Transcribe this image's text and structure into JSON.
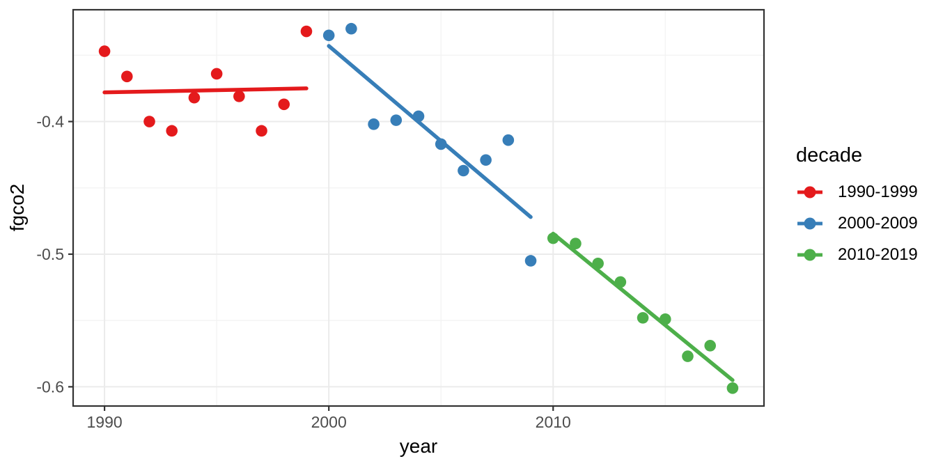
{
  "chart_data": {
    "type": "scatter",
    "title": "",
    "xlabel": "year",
    "ylabel": "fgco2",
    "x_range": [
      1988.6,
      2019.4
    ],
    "y_range": [
      -0.6145,
      -0.3157
    ],
    "x_ticks": [
      1990,
      2000,
      2010
    ],
    "y_ticks": [
      -0.4,
      -0.5,
      -0.6
    ],
    "x_minor_ticks": [
      1995,
      2005,
      2015
    ],
    "y_minor_ticks": [
      -0.35,
      -0.45,
      -0.55
    ],
    "grid": "major+minor on, white panel, dark border",
    "legend": {
      "title": "decade",
      "position": "right"
    },
    "series": [
      {
        "name": "1990-1999",
        "color": "#E41A1C",
        "x": [
          1990,
          1991,
          1992,
          1993,
          1994,
          1995,
          1996,
          1997,
          1998,
          1999
        ],
        "y": [
          -0.347,
          -0.366,
          -0.4,
          -0.407,
          -0.382,
          -0.364,
          -0.381,
          -0.407,
          -0.387,
          -0.332
        ],
        "trend": {
          "x1": 1990,
          "y1": -0.378,
          "x2": 1999,
          "y2": -0.375
        }
      },
      {
        "name": "2000-2009",
        "color": "#377EB8",
        "x": [
          2000,
          2001,
          2002,
          2003,
          2004,
          2005,
          2006,
          2007,
          2008,
          2009
        ],
        "y": [
          -0.335,
          -0.33,
          -0.402,
          -0.399,
          -0.396,
          -0.417,
          -0.437,
          -0.429,
          -0.414,
          -0.505
        ],
        "trend": {
          "x1": 2000,
          "y1": -0.343,
          "x2": 2009,
          "y2": -0.472
        }
      },
      {
        "name": "2010-2019",
        "color": "#4DAF4A",
        "x": [
          2010,
          2011,
          2012,
          2013,
          2014,
          2015,
          2016,
          2017,
          2018
        ],
        "y": [
          -0.488,
          -0.492,
          -0.507,
          -0.521,
          -0.548,
          -0.549,
          -0.577,
          -0.569,
          -0.601
        ],
        "trend": {
          "x1": 2010,
          "y1": -0.4845,
          "x2": 2018,
          "y2": -0.595
        }
      }
    ],
    "style": {
      "background": "#FFFFFF",
      "grid_major_color": "#EBEBEB",
      "grid_minor_color": "#F3F3F3",
      "panel_border_color": "#333333",
      "tick_color": "#333333",
      "tick_label_color": "#4D4D4D",
      "text_color": "#000000"
    }
  }
}
